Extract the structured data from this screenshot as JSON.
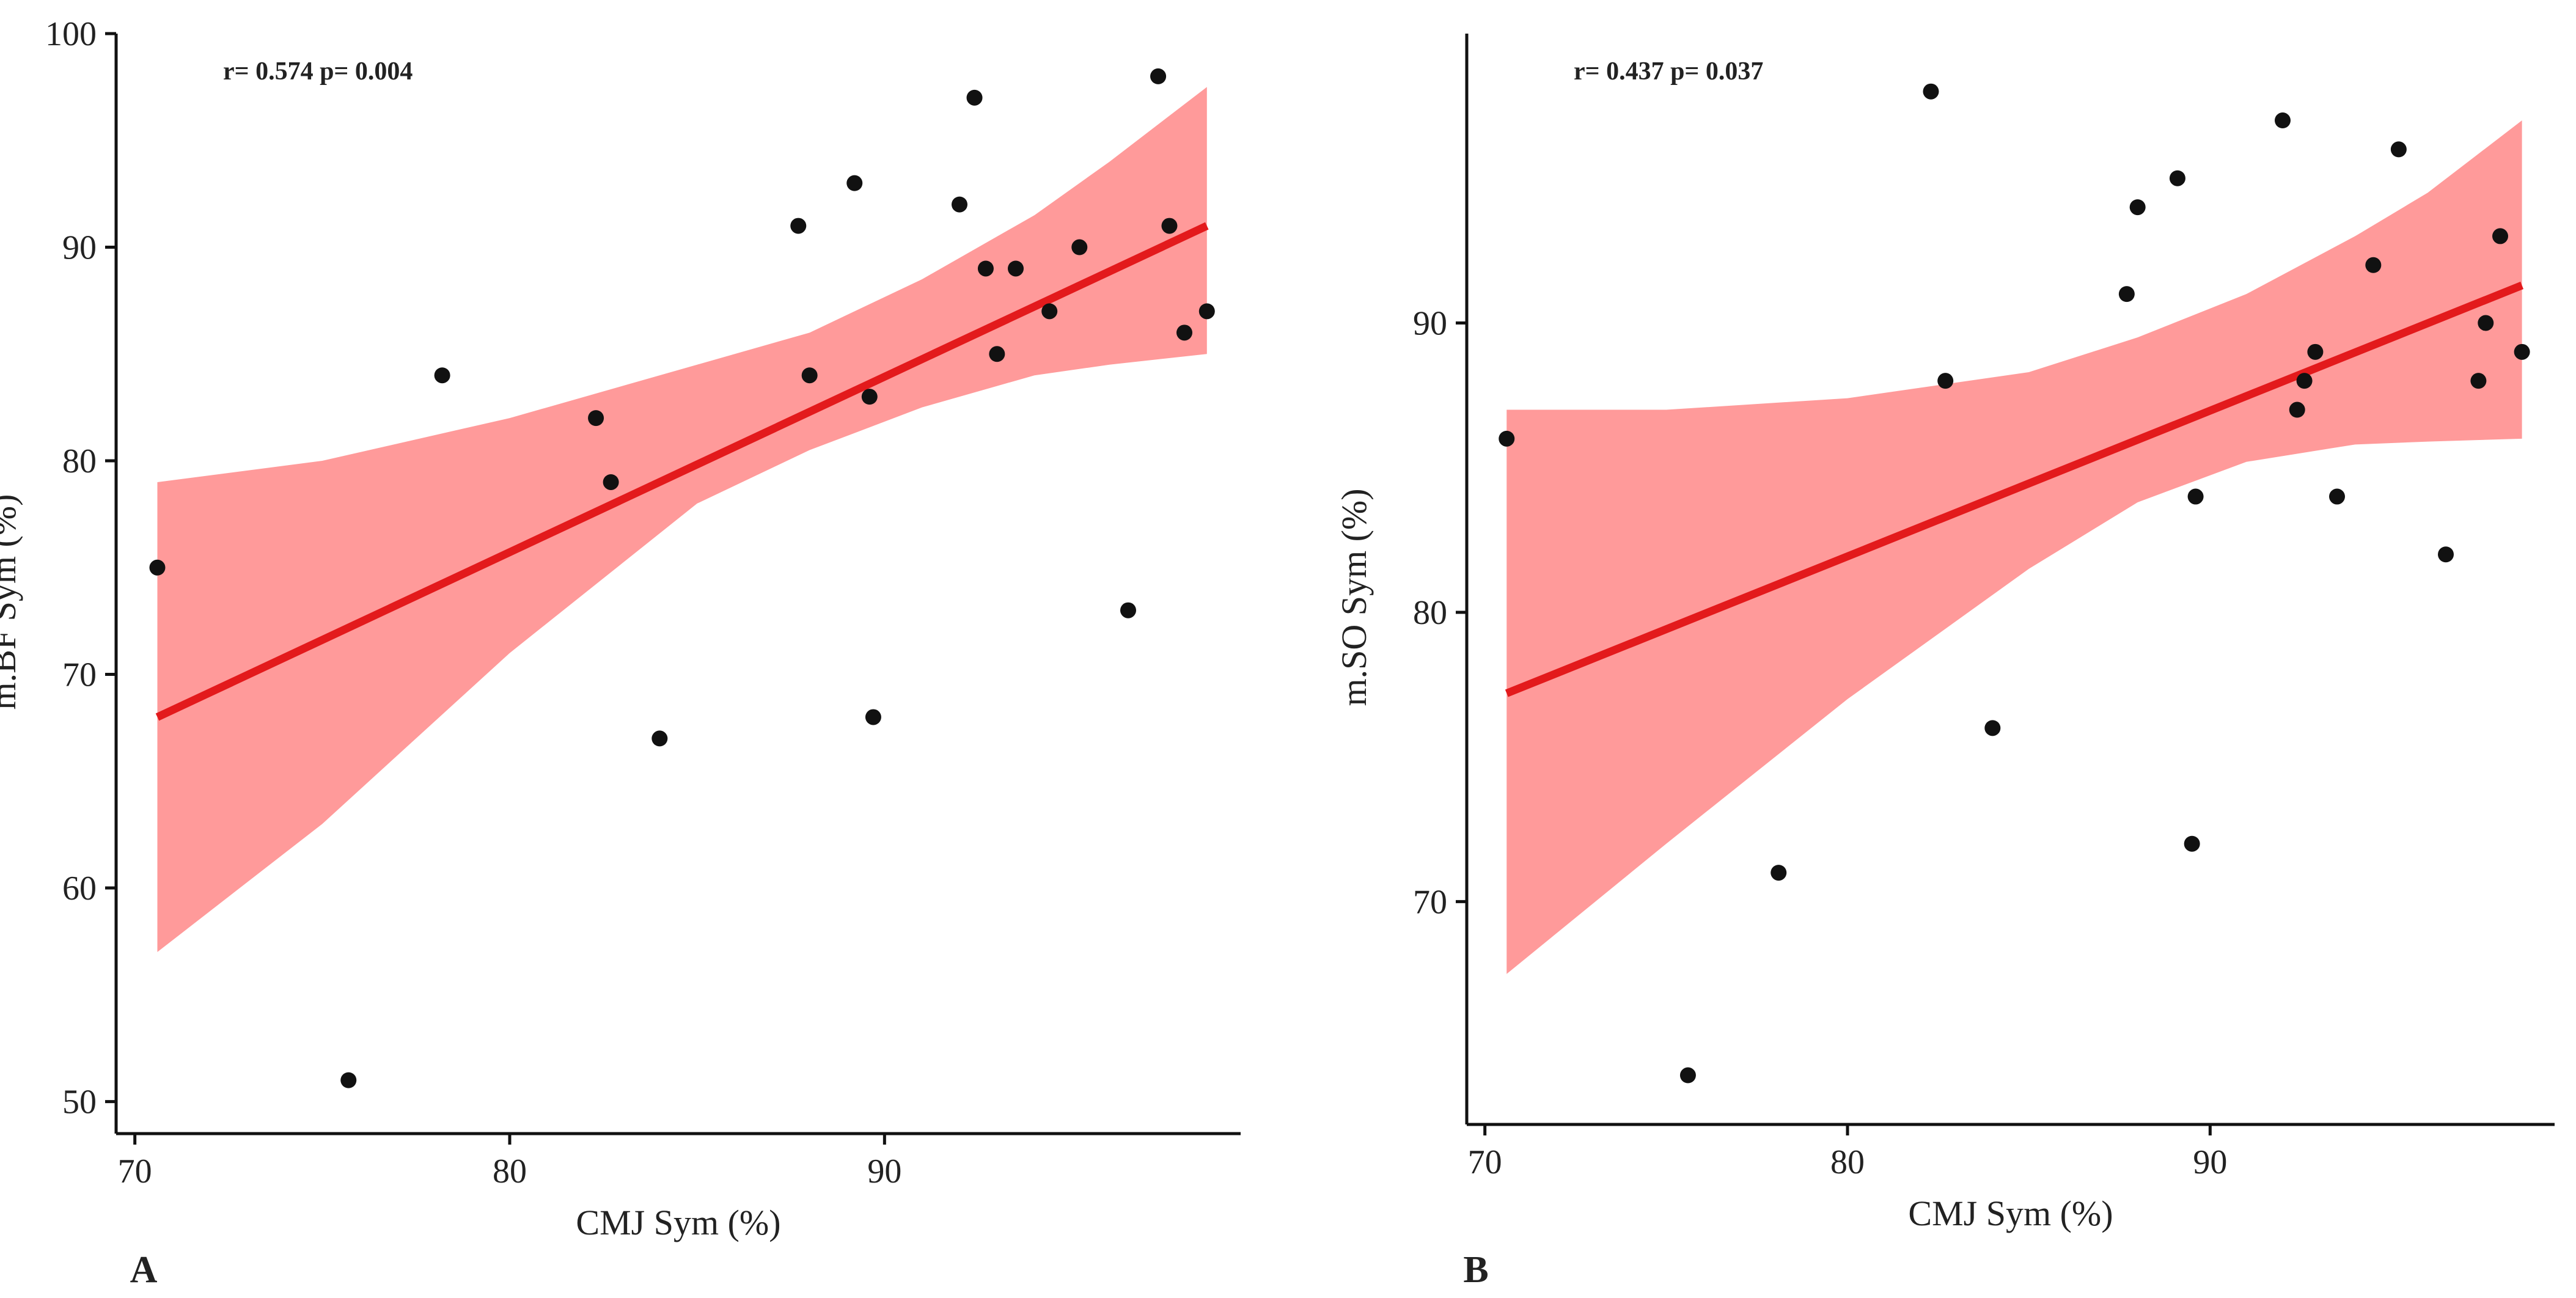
{
  "figure": {
    "panel_labels": [
      "A",
      "B"
    ]
  },
  "chart_data": [
    {
      "type": "scatter",
      "panel": "A",
      "title": "",
      "annotation": "r= 0.574 p= 0.004",
      "xlabel": "CMJ Sym (%)",
      "ylabel": "m.BF Sym (%)",
      "xlim": [
        69.5,
        99.5
      ],
      "ylim": [
        48.5,
        100
      ],
      "xticks": [
        70,
        80,
        90
      ],
      "yticks": [
        50,
        60,
        70,
        80,
        90,
        100
      ],
      "points": [
        {
          "x": 70.6,
          "y": 75
        },
        {
          "x": 75.7,
          "y": 51
        },
        {
          "x": 78.2,
          "y": 84
        },
        {
          "x": 82.3,
          "y": 82
        },
        {
          "x": 82.7,
          "y": 79
        },
        {
          "x": 84.0,
          "y": 67
        },
        {
          "x": 87.7,
          "y": 91
        },
        {
          "x": 88.0,
          "y": 84
        },
        {
          "x": 89.2,
          "y": 93
        },
        {
          "x": 89.6,
          "y": 83
        },
        {
          "x": 89.7,
          "y": 68
        },
        {
          "x": 92.0,
          "y": 92
        },
        {
          "x": 92.4,
          "y": 97
        },
        {
          "x": 92.7,
          "y": 89
        },
        {
          "x": 93.0,
          "y": 85
        },
        {
          "x": 93.5,
          "y": 89
        },
        {
          "x": 94.4,
          "y": 87
        },
        {
          "x": 95.2,
          "y": 90
        },
        {
          "x": 96.5,
          "y": 73
        },
        {
          "x": 97.3,
          "y": 98
        },
        {
          "x": 97.6,
          "y": 91
        },
        {
          "x": 98.0,
          "y": 86
        },
        {
          "x": 98.6,
          "y": 87
        }
      ],
      "fit": {
        "x": [
          70.6,
          98.6
        ],
        "y": [
          68,
          91
        ]
      },
      "band": {
        "x": [
          70.6,
          75,
          80,
          85,
          88,
          91,
          94,
          96,
          98.6
        ],
        "lower": [
          57,
          63,
          71,
          78,
          80.5,
          82.5,
          84,
          84.5,
          85
        ],
        "upper": [
          79,
          80,
          82,
          84.5,
          86,
          88.5,
          91.5,
          94,
          97.5
        ]
      }
    },
    {
      "type": "scatter",
      "panel": "B",
      "title": "",
      "annotation": "r= 0.437 p= 0.037",
      "xlabel": "CMJ Sym (%)",
      "ylabel": "m.SO Sym (%)",
      "xlim": [
        69.5,
        99.5
      ],
      "ylim": [
        62.3,
        100
      ],
      "xticks": [
        70,
        80,
        90
      ],
      "yticks": [
        70,
        80,
        90
      ],
      "points": [
        {
          "x": 70.6,
          "y": 86
        },
        {
          "x": 75.6,
          "y": 64
        },
        {
          "x": 78.1,
          "y": 71
        },
        {
          "x": 82.3,
          "y": 98
        },
        {
          "x": 82.7,
          "y": 88
        },
        {
          "x": 84.0,
          "y": 76
        },
        {
          "x": 87.7,
          "y": 91
        },
        {
          "x": 88.0,
          "y": 94
        },
        {
          "x": 89.1,
          "y": 95
        },
        {
          "x": 89.5,
          "y": 72
        },
        {
          "x": 89.6,
          "y": 84
        },
        {
          "x": 92.0,
          "y": 97
        },
        {
          "x": 92.4,
          "y": 87
        },
        {
          "x": 92.6,
          "y": 88
        },
        {
          "x": 92.9,
          "y": 89
        },
        {
          "x": 93.5,
          "y": 84
        },
        {
          "x": 94.5,
          "y": 92
        },
        {
          "x": 95.2,
          "y": 96
        },
        {
          "x": 96.5,
          "y": 82
        },
        {
          "x": 97.4,
          "y": 88
        },
        {
          "x": 97.6,
          "y": 90
        },
        {
          "x": 98.0,
          "y": 93
        },
        {
          "x": 98.6,
          "y": 89
        }
      ],
      "fit": {
        "x": [
          70.6,
          98.6
        ],
        "y": [
          77.2,
          91.3
        ]
      },
      "band": {
        "x": [
          70.6,
          75,
          80,
          85,
          88,
          91,
          94,
          96,
          98.6
        ],
        "lower": [
          67.5,
          72,
          77,
          81.5,
          83.8,
          85.2,
          85.8,
          85.9,
          86
        ],
        "upper": [
          87,
          87,
          87.4,
          88.3,
          89.5,
          91,
          93,
          94.5,
          97
        ]
      }
    }
  ]
}
